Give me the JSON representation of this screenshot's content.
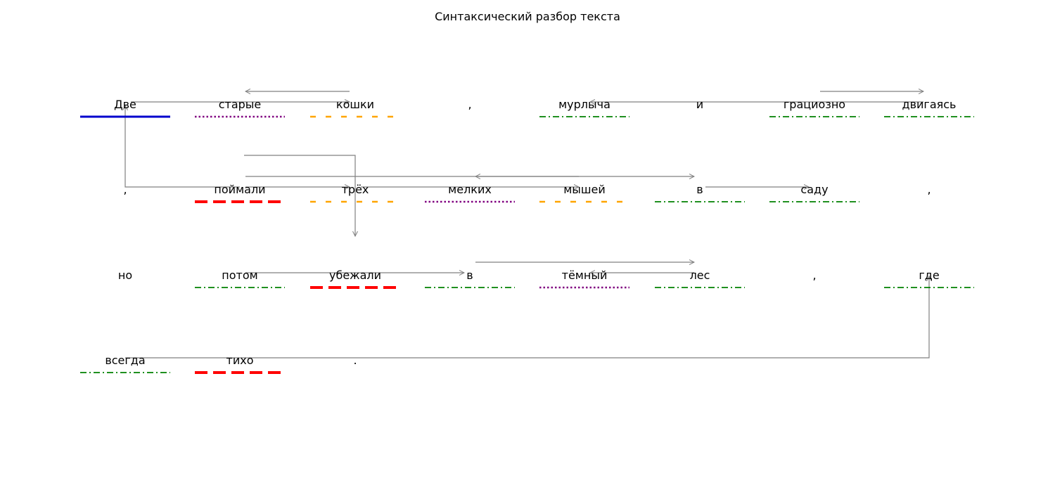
{
  "title": "Синтаксический разбор текста",
  "colors": {
    "subject": "#0000cc",
    "predicate": "#ff0000",
    "attribute": "#800080",
    "object": "#ffa500",
    "adverbial": "#008000",
    "arrow": "#808080",
    "text": "#000000"
  },
  "rows": [
    [
      {
        "text": "Две",
        "role": "subject"
      },
      {
        "text": "старые",
        "role": "attribute"
      },
      {
        "text": "кошки",
        "role": "object"
      },
      {
        "text": ",",
        "role": "none"
      },
      {
        "text": "мурлыча",
        "role": "adverbial"
      },
      {
        "text": "и",
        "role": "none"
      },
      {
        "text": "грациозно",
        "role": "adverbial"
      },
      {
        "text": "двигаясь",
        "role": "adverbial"
      }
    ],
    [
      {
        "text": ",",
        "role": "none"
      },
      {
        "text": "поймали",
        "role": "predicate"
      },
      {
        "text": "трёх",
        "role": "object"
      },
      {
        "text": "мелких",
        "role": "attribute"
      },
      {
        "text": "мышей",
        "role": "object"
      },
      {
        "text": "в",
        "role": "adverbial"
      },
      {
        "text": "саду",
        "role": "adverbial"
      },
      {
        "text": ",",
        "role": "none"
      }
    ],
    [
      {
        "text": "но",
        "role": "none"
      },
      {
        "text": "потом",
        "role": "adverbial"
      },
      {
        "text": "убежали",
        "role": "predicate"
      },
      {
        "text": "в",
        "role": "adverbial"
      },
      {
        "text": "тёмный",
        "role": "attribute"
      },
      {
        "text": "лес",
        "role": "adverbial"
      },
      {
        "text": ",",
        "role": "none"
      },
      {
        "text": "где",
        "role": "adverbial"
      }
    ],
    [
      {
        "text": "всегда",
        "role": "adverbial"
      },
      {
        "text": "тихо",
        "role": "predicate"
      },
      {
        "text": ".",
        "role": "none"
      }
    ]
  ],
  "links": [
    {
      "from": [
        0,
        0
      ],
      "to": [
        0,
        2
      ]
    },
    {
      "from": [
        0,
        2
      ],
      "to": [
        0,
        1
      ]
    },
    {
      "from": [
        1,
        1
      ],
      "to": [
        0,
        0
      ]
    },
    {
      "from": [
        0,
        7
      ],
      "to": [
        0,
        4
      ]
    },
    {
      "from": [
        0,
        6
      ],
      "to": [
        0,
        7
      ]
    },
    {
      "from": [
        1,
        1
      ],
      "to": [
        1,
        2
      ]
    },
    {
      "from": [
        1,
        1
      ],
      "to": [
        1,
        5
      ]
    },
    {
      "from": [
        1,
        1
      ],
      "to": [
        2,
        2
      ]
    },
    {
      "from": [
        1,
        2
      ],
      "to": [
        1,
        4
      ]
    },
    {
      "from": [
        1,
        4
      ],
      "to": [
        1,
        3
      ]
    },
    {
      "from": [
        1,
        5
      ],
      "to": [
        1,
        6
      ]
    },
    {
      "from": [
        2,
        1
      ],
      "to": [
        2,
        3
      ]
    },
    {
      "from": [
        2,
        3
      ],
      "to": [
        2,
        5
      ]
    },
    {
      "from": [
        2,
        5
      ],
      "to": [
        2,
        4
      ]
    },
    {
      "from": [
        3,
        0
      ],
      "to": [
        2,
        7
      ]
    }
  ]
}
